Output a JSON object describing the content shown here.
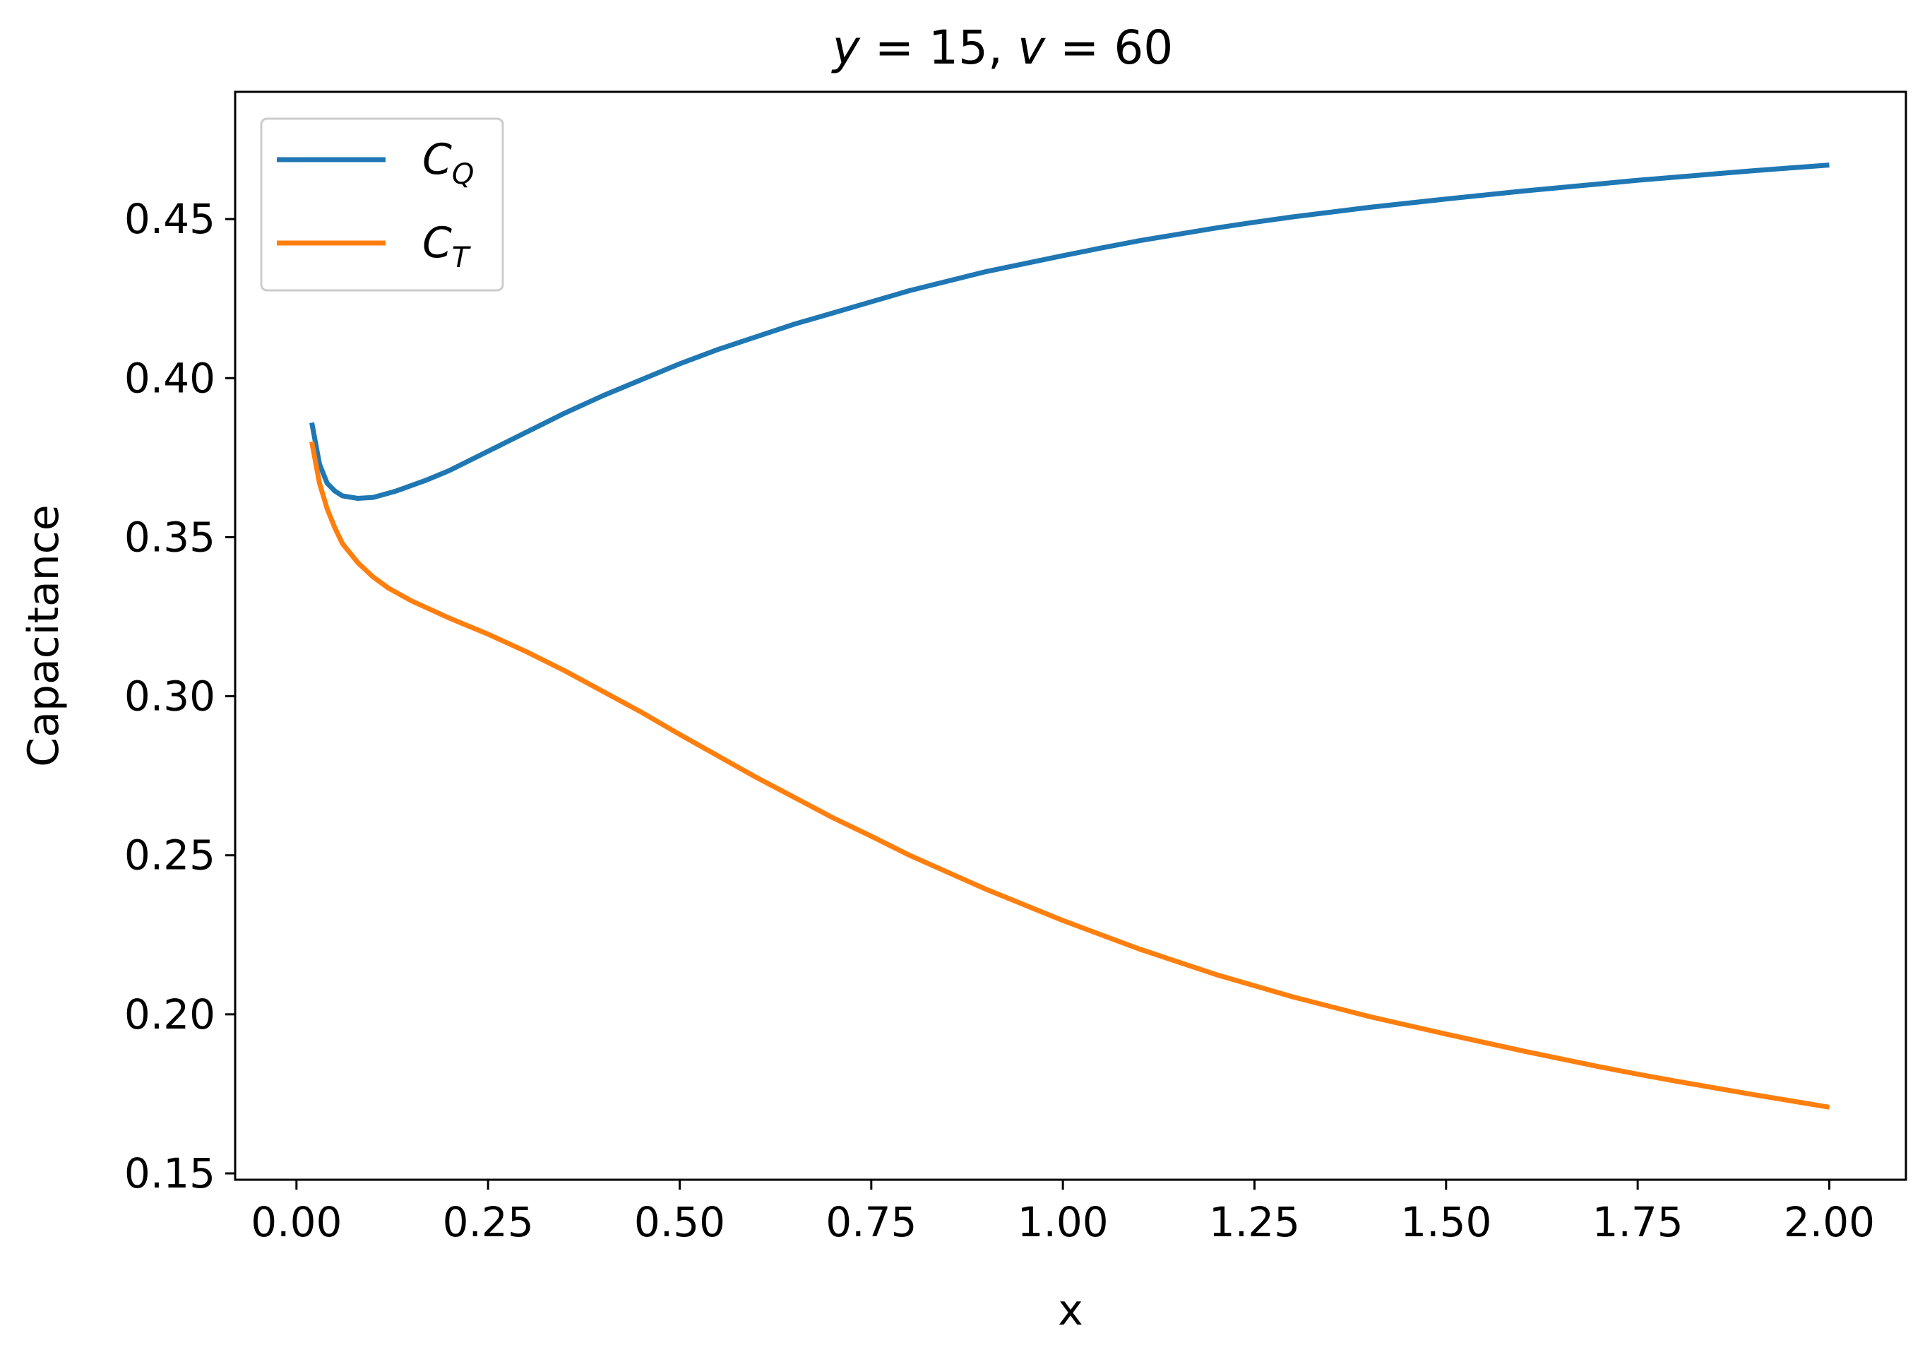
{
  "chart_data": {
    "type": "line",
    "title": "y = 15, v = 60",
    "title_parts": {
      "var1": "y",
      "val1": "15",
      "var2": "v",
      "val2": "60"
    },
    "xlabel": "x",
    "ylabel": "Capacitance",
    "xlim": [
      -0.08,
      2.1
    ],
    "ylim": [
      0.148,
      0.49
    ],
    "xticks": [
      0.0,
      0.25,
      0.5,
      0.75,
      1.0,
      1.25,
      1.5,
      1.75,
      2.0
    ],
    "xtick_labels": [
      "0.00",
      "0.25",
      "0.50",
      "0.75",
      "1.00",
      "1.25",
      "1.50",
      "1.75",
      "2.00"
    ],
    "yticks": [
      0.15,
      0.2,
      0.25,
      0.3,
      0.35,
      0.4,
      0.45
    ],
    "ytick_labels": [
      "0.15",
      "0.20",
      "0.25",
      "0.30",
      "0.35",
      "0.40",
      "0.45"
    ],
    "grid": false,
    "legend_position": "upper-left",
    "series": [
      {
        "name": "C_Q",
        "label_base": "C",
        "label_sub": "Q",
        "color": "#1f77b4",
        "points": [
          [
            0.02,
            0.386
          ],
          [
            0.03,
            0.373
          ],
          [
            0.04,
            0.367
          ],
          [
            0.05,
            0.3645
          ],
          [
            0.06,
            0.363
          ],
          [
            0.08,
            0.3622
          ],
          [
            0.1,
            0.3625
          ],
          [
            0.13,
            0.3645
          ],
          [
            0.17,
            0.368
          ],
          [
            0.2,
            0.371
          ],
          [
            0.25,
            0.377
          ],
          [
            0.3,
            0.383
          ],
          [
            0.35,
            0.389
          ],
          [
            0.4,
            0.3945
          ],
          [
            0.45,
            0.3995
          ],
          [
            0.5,
            0.4045
          ],
          [
            0.55,
            0.409
          ],
          [
            0.6,
            0.413
          ],
          [
            0.65,
            0.417
          ],
          [
            0.7,
            0.4205
          ],
          [
            0.75,
            0.424
          ],
          [
            0.8,
            0.4275
          ],
          [
            0.85,
            0.4305
          ],
          [
            0.9,
            0.4335
          ],
          [
            0.95,
            0.436
          ],
          [
            1.0,
            0.4385
          ],
          [
            1.05,
            0.4409
          ],
          [
            1.1,
            0.4432
          ],
          [
            1.2,
            0.4472
          ],
          [
            1.25,
            0.449
          ],
          [
            1.3,
            0.4507
          ],
          [
            1.4,
            0.4537
          ],
          [
            1.5,
            0.4563
          ],
          [
            1.6,
            0.4588
          ],
          [
            1.75,
            0.4622
          ],
          [
            1.9,
            0.4652
          ],
          [
            2.0,
            0.467
          ]
        ]
      },
      {
        "name": "C_T",
        "label_base": "C",
        "label_sub": "T",
        "color": "#ff7f0e",
        "points": [
          [
            0.02,
            0.38
          ],
          [
            0.03,
            0.367
          ],
          [
            0.04,
            0.359
          ],
          [
            0.05,
            0.353
          ],
          [
            0.06,
            0.348
          ],
          [
            0.08,
            0.342
          ],
          [
            0.1,
            0.3375
          ],
          [
            0.12,
            0.334
          ],
          [
            0.15,
            0.33
          ],
          [
            0.2,
            0.3245
          ],
          [
            0.25,
            0.3195
          ],
          [
            0.3,
            0.314
          ],
          [
            0.35,
            0.308
          ],
          [
            0.4,
            0.3015
          ],
          [
            0.45,
            0.295
          ],
          [
            0.5,
            0.288
          ],
          [
            0.6,
            0.2745
          ],
          [
            0.7,
            0.2618
          ],
          [
            0.75,
            0.256
          ],
          [
            0.8,
            0.25
          ],
          [
            0.9,
            0.2393
          ],
          [
            1.0,
            0.2295
          ],
          [
            1.1,
            0.2205
          ],
          [
            1.2,
            0.2125
          ],
          [
            1.25,
            0.209
          ],
          [
            1.3,
            0.2055
          ],
          [
            1.4,
            0.1993
          ],
          [
            1.5,
            0.1938
          ],
          [
            1.6,
            0.1885
          ],
          [
            1.7,
            0.1835
          ],
          [
            1.75,
            0.1812
          ],
          [
            1.8,
            0.179
          ],
          [
            1.9,
            0.1748
          ],
          [
            2.0,
            0.1708
          ]
        ]
      }
    ]
  }
}
